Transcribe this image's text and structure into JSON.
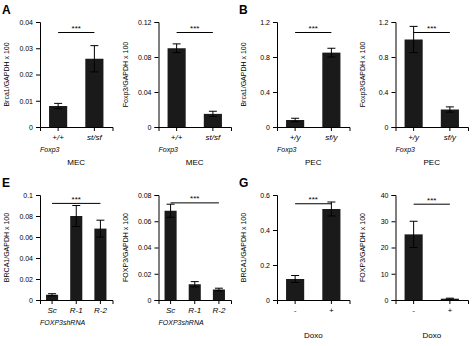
{
  "chart_data": [
    {
      "type": "bar",
      "title": "A",
      "categories": [
        "+/+",
        "st/sf"
      ],
      "values": [
        0.008,
        0.026
      ],
      "errors": [
        0.001,
        0.005
      ],
      "color": "#1a1a1a",
      "ylabel": "Brca1/GAPDH x 100",
      "xlabel": "MEC",
      "ylim": [
        0,
        0.04
      ],
      "yticks": [
        0,
        0.01,
        0.02,
        0.03,
        0.04
      ],
      "annotations": [
        {
          "text": "***",
          "y": 0.036,
          "from": "+/+",
          "to": "st/sf"
        },
        {
          "text": "Foxp3"
        }
      ]
    },
    {
      "type": "bar",
      "categories": [
        "+/+",
        "st/sf"
      ],
      "values": [
        0.09,
        0.015
      ],
      "errors": [
        0.005,
        0.003
      ],
      "color": "#1a1a1a",
      "ylabel": "Foxp3/GAPDH x 100",
      "xlabel": "MEC",
      "ylim": [
        0,
        0.12
      ],
      "yticks": [
        0,
        0.04,
        0.08,
        0.12
      ],
      "annotations": [
        {
          "text": "***",
          "y": 0.108,
          "from": "+/+",
          "to": "st/sf"
        },
        {
          "text": "Foxp3"
        }
      ]
    },
    {
      "type": "bar",
      "title": "B",
      "categories": [
        "+/y",
        "sf/y"
      ],
      "values": [
        0.08,
        0.85
      ],
      "errors": [
        0.02,
        0.05
      ],
      "color": "#1a1a1a",
      "ylabel": "Brca1/GAPDH x 100",
      "xlabel": "PEC",
      "ylim": [
        0,
        1.2
      ],
      "yticks": [
        0,
        0.4,
        0.8,
        1.2
      ],
      "annotations": [
        {
          "text": "***",
          "y": 1.08,
          "from": "+/y",
          "to": "sf/y"
        },
        {
          "text": "Foxp3"
        }
      ]
    },
    {
      "type": "bar",
      "categories": [
        "+/y",
        "sf/y"
      ],
      "values": [
        1.0,
        0.2
      ],
      "errors": [
        0.15,
        0.03
      ],
      "color": "#1a1a1a",
      "ylabel": "Foxp3/GAPDH x 100",
      "xlabel": "PEC",
      "ylim": [
        0,
        1.2
      ],
      "yticks": [
        0,
        0.4,
        0.8,
        1.2
      ],
      "annotations": [
        {
          "text": "***",
          "y": 1.08,
          "from": "+/y",
          "to": "sf/y"
        },
        {
          "text": "Foxp3"
        }
      ]
    },
    {
      "type": "bar",
      "title": "E",
      "categories": [
        "Sc",
        "R-1",
        "R-2"
      ],
      "values": [
        0.005,
        0.08,
        0.068
      ],
      "errors": [
        0.001,
        0.01,
        0.008
      ],
      "color": "#1a1a1a",
      "ylabel": "BRCA1/GAPDH x 100",
      "ylim": [
        0,
        0.1
      ],
      "yticks": [
        0,
        0.02,
        0.04,
        0.06,
        0.08,
        0.1
      ],
      "annotations": [
        {
          "text": "FOXP3shRNA"
        },
        {
          "text": "***",
          "y": 0.092,
          "from": "Sc",
          "to": "R-2"
        }
      ]
    },
    {
      "type": "bar",
      "categories": [
        "Sc",
        "R-1",
        "R-2"
      ],
      "values": [
        0.068,
        0.012,
        0.008
      ],
      "errors": [
        0.005,
        0.002,
        0.001
      ],
      "color": "#1a1a1a",
      "ylabel": "FOXP3/GAPDH x 100",
      "ylim": [
        0,
        0.08
      ],
      "yticks": [
        0,
        0.02,
        0.04,
        0.06,
        0.08
      ],
      "annotations": [
        {
          "text": "FOXP3shRNA"
        },
        {
          "text": "***",
          "y": 0.074,
          "from": "Sc",
          "to": "R-2"
        }
      ]
    },
    {
      "type": "bar",
      "title": "G",
      "categories": [
        "-",
        "+"
      ],
      "values": [
        0.12,
        0.52
      ],
      "errors": [
        0.02,
        0.04
      ],
      "color": "#1a1a1a",
      "ylabel": "BRCA1/GAPDH x 100",
      "xlabel": "Doxo",
      "ylim": [
        0,
        0.6
      ],
      "yticks": [
        0,
        0.2,
        0.4,
        0.6
      ],
      "annotations": [
        {
          "text": "***",
          "y": 0.55,
          "from": "-",
          "to": "+"
        }
      ]
    },
    {
      "type": "bar",
      "categories": [
        "-",
        "+"
      ],
      "values": [
        25,
        0.5
      ],
      "errors": [
        5,
        0.2
      ],
      "color": "#1a1a1a",
      "ylabel": "FOXP3/GAPDH x 100",
      "xlabel": "Doxo",
      "ylim": [
        0,
        40
      ],
      "yticks": [
        0,
        10,
        20,
        30,
        40
      ],
      "annotations": [
        {
          "text": "***",
          "y": 36.5,
          "from": "-",
          "to": "+"
        }
      ]
    }
  ]
}
